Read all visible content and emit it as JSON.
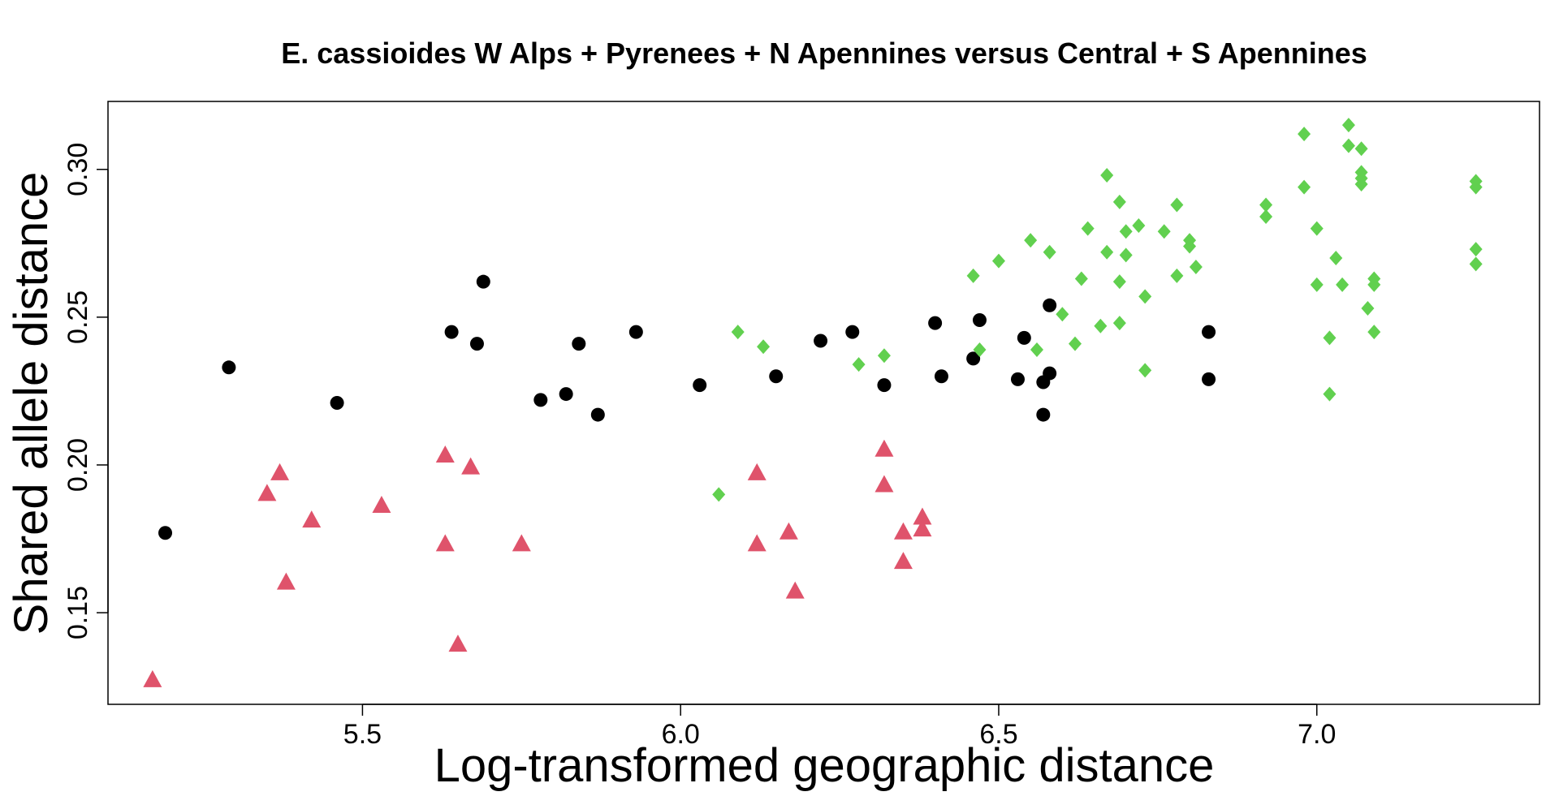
{
  "chart_data": {
    "type": "scatter",
    "title": "E. cassioides W Alps + Pyrenees + N Apennines versus Central + S Apennines",
    "xlabel": "Log-transformed geographic distance",
    "ylabel": "Shared allele distance",
    "xlim": [
      5.1,
      7.35
    ],
    "ylim": [
      0.119,
      0.323
    ],
    "x_ticks": [
      {
        "value": 5.5,
        "label": "5.5"
      },
      {
        "value": 6.0,
        "label": "6.0"
      },
      {
        "value": 6.5,
        "label": "6.5"
      },
      {
        "value": 7.0,
        "label": "7.0"
      }
    ],
    "y_ticks": [
      {
        "value": 0.15,
        "label": "0.15"
      },
      {
        "value": 0.2,
        "label": "0.20"
      },
      {
        "value": 0.25,
        "label": "0.25"
      },
      {
        "value": 0.3,
        "label": "0.30"
      }
    ],
    "grid": false,
    "series": [
      {
        "marker": "circle",
        "color": "#000000",
        "points": [
          [
            5.19,
            0.177
          ],
          [
            5.29,
            0.233
          ],
          [
            5.46,
            0.221
          ],
          [
            5.64,
            0.245
          ],
          [
            5.68,
            0.241
          ],
          [
            5.69,
            0.262
          ],
          [
            5.78,
            0.222
          ],
          [
            5.82,
            0.224
          ],
          [
            5.84,
            0.241
          ],
          [
            5.87,
            0.217
          ],
          [
            5.93,
            0.245
          ],
          [
            6.03,
            0.227
          ],
          [
            6.15,
            0.23
          ],
          [
            6.22,
            0.242
          ],
          [
            6.27,
            0.245
          ],
          [
            6.32,
            0.227
          ],
          [
            6.4,
            0.248
          ],
          [
            6.41,
            0.23
          ],
          [
            6.46,
            0.236
          ],
          [
            6.47,
            0.249
          ],
          [
            6.53,
            0.229
          ],
          [
            6.54,
            0.243
          ],
          [
            6.57,
            0.228
          ],
          [
            6.57,
            0.217
          ],
          [
            6.58,
            0.231
          ],
          [
            6.58,
            0.254
          ],
          [
            6.83,
            0.229
          ],
          [
            6.83,
            0.245
          ]
        ]
      },
      {
        "marker": "triangle",
        "color": "#DF536B",
        "points": [
          [
            5.17,
            0.127
          ],
          [
            5.35,
            0.19
          ],
          [
            5.37,
            0.197
          ],
          [
            5.38,
            0.16
          ],
          [
            5.42,
            0.181
          ],
          [
            5.53,
            0.186
          ],
          [
            5.63,
            0.203
          ],
          [
            5.63,
            0.173
          ],
          [
            5.65,
            0.139
          ],
          [
            5.67,
            0.199
          ],
          [
            5.75,
            0.173
          ],
          [
            6.12,
            0.197
          ],
          [
            6.12,
            0.173
          ],
          [
            6.17,
            0.177
          ],
          [
            6.18,
            0.157
          ],
          [
            6.32,
            0.205
          ],
          [
            6.32,
            0.193
          ],
          [
            6.35,
            0.177
          ],
          [
            6.35,
            0.167
          ],
          [
            6.38,
            0.182
          ],
          [
            6.38,
            0.178
          ]
        ]
      },
      {
        "marker": "diamond",
        "color": "#61D04F",
        "points": [
          [
            6.06,
            0.19
          ],
          [
            6.09,
            0.245
          ],
          [
            6.13,
            0.24
          ],
          [
            6.28,
            0.234
          ],
          [
            6.32,
            0.237
          ],
          [
            6.46,
            0.264
          ],
          [
            6.47,
            0.239
          ],
          [
            6.5,
            0.269
          ],
          [
            6.55,
            0.276
          ],
          [
            6.56,
            0.239
          ],
          [
            6.58,
            0.272
          ],
          [
            6.6,
            0.251
          ],
          [
            6.62,
            0.241
          ],
          [
            6.63,
            0.263
          ],
          [
            6.64,
            0.28
          ],
          [
            6.66,
            0.247
          ],
          [
            6.67,
            0.298
          ],
          [
            6.67,
            0.272
          ],
          [
            6.69,
            0.289
          ],
          [
            6.69,
            0.262
          ],
          [
            6.69,
            0.248
          ],
          [
            6.7,
            0.279
          ],
          [
            6.7,
            0.271
          ],
          [
            6.72,
            0.281
          ],
          [
            6.73,
            0.257
          ],
          [
            6.73,
            0.232
          ],
          [
            6.76,
            0.279
          ],
          [
            6.78,
            0.288
          ],
          [
            6.78,
            0.264
          ],
          [
            6.8,
            0.276
          ],
          [
            6.8,
            0.274
          ],
          [
            6.81,
            0.267
          ],
          [
            6.92,
            0.288
          ],
          [
            6.92,
            0.284
          ],
          [
            6.98,
            0.312
          ],
          [
            6.98,
            0.294
          ],
          [
            7.0,
            0.261
          ],
          [
            7.0,
            0.28
          ],
          [
            7.02,
            0.224
          ],
          [
            7.02,
            0.243
          ],
          [
            7.03,
            0.27
          ],
          [
            7.04,
            0.261
          ],
          [
            7.05,
            0.315
          ],
          [
            7.05,
            0.308
          ],
          [
            7.07,
            0.307
          ],
          [
            7.07,
            0.299
          ],
          [
            7.07,
            0.297
          ],
          [
            7.07,
            0.295
          ],
          [
            7.08,
            0.253
          ],
          [
            7.09,
            0.245
          ],
          [
            7.09,
            0.261
          ],
          [
            7.09,
            0.263
          ],
          [
            7.25,
            0.296
          ],
          [
            7.25,
            0.294
          ],
          [
            7.25,
            0.273
          ],
          [
            7.25,
            0.268
          ]
        ]
      }
    ]
  }
}
